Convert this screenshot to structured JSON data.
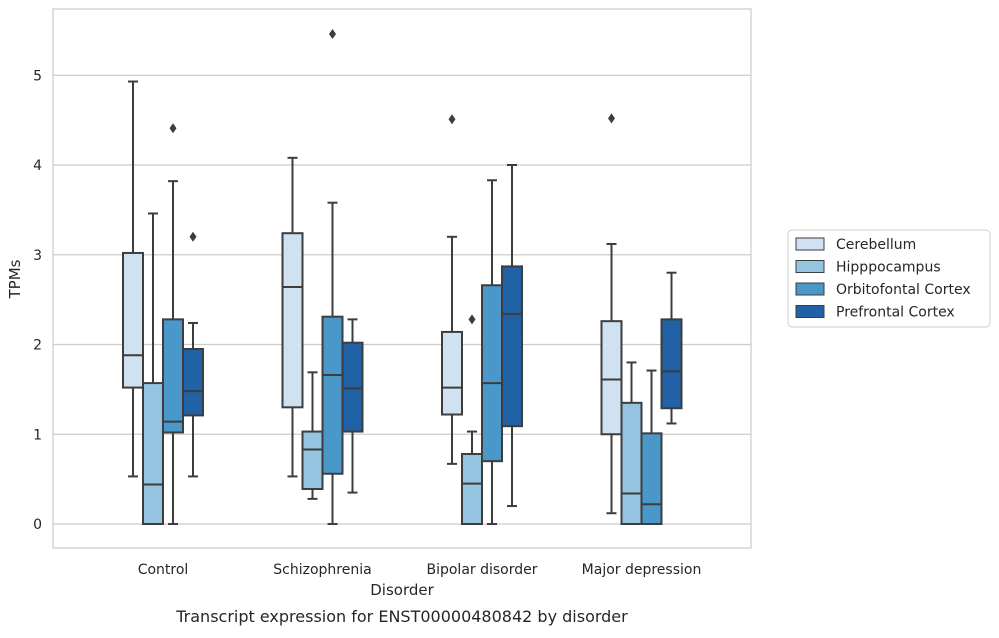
{
  "chart_data": {
    "type": "boxplot",
    "title": "Transcript expression for ENST00000480842 by disorder",
    "xlabel": "Disorder",
    "ylabel": "TPMs",
    "ylim": [
      -0.27,
      5.73
    ],
    "yticks": [
      0,
      1,
      2,
      3,
      4,
      5
    ],
    "categories": [
      "Control",
      "Schizophrenia",
      "Bipolar disorder",
      "Major depression"
    ],
    "grid": "horizontal",
    "legend_position": "right",
    "series": [
      {
        "name": "Cerebellum",
        "color": "#d0e1f2",
        "boxes": [
          {
            "whislo": 0.53,
            "q1": 1.52,
            "med": 1.88,
            "q3": 3.02,
            "whishi": 4.93,
            "fliers": []
          },
          {
            "whislo": 0.53,
            "q1": 1.3,
            "med": 2.64,
            "q3": 3.24,
            "whishi": 4.08,
            "fliers": []
          },
          {
            "whislo": 0.67,
            "q1": 1.22,
            "med": 1.52,
            "q3": 2.14,
            "whishi": 3.2,
            "fliers": [
              4.51
            ]
          },
          {
            "whislo": 0.12,
            "q1": 1.0,
            "med": 1.61,
            "q3": 2.26,
            "whishi": 3.12,
            "fliers": [
              4.52
            ]
          }
        ]
      },
      {
        "name": "Hipppocampus",
        "color": "#94c4df",
        "boxes": [
          {
            "whislo": 0.0,
            "q1": 0.0,
            "med": 0.44,
            "q3": 1.57,
            "whishi": 3.46,
            "fliers": []
          },
          {
            "whislo": 0.28,
            "q1": 0.39,
            "med": 0.83,
            "q3": 1.03,
            "whishi": 1.69,
            "fliers": []
          },
          {
            "whislo": 0.0,
            "q1": 0.0,
            "med": 0.45,
            "q3": 0.78,
            "whishi": 1.03,
            "fliers": [
              2.28
            ]
          },
          {
            "whislo": 0.0,
            "q1": 0.0,
            "med": 0.34,
            "q3": 1.35,
            "whishi": 1.8,
            "fliers": []
          }
        ]
      },
      {
        "name": "Orbitofontal Cortex",
        "color": "#4a98c9",
        "boxes": [
          {
            "whislo": 0.0,
            "q1": 1.02,
            "med": 1.14,
            "q3": 2.28,
            "whishi": 3.82,
            "fliers": [
              4.41
            ]
          },
          {
            "whislo": 0.0,
            "q1": 0.56,
            "med": 1.66,
            "q3": 2.31,
            "whishi": 3.58,
            "fliers": [
              5.46
            ]
          },
          {
            "whislo": 0.0,
            "q1": 0.7,
            "med": 1.57,
            "q3": 2.66,
            "whishi": 3.83,
            "fliers": []
          },
          {
            "whislo": 0.0,
            "q1": 0.0,
            "med": 0.22,
            "q3": 1.01,
            "whishi": 1.71,
            "fliers": []
          }
        ]
      },
      {
        "name": "Prefrontal Cortex",
        "color": "#2161a5",
        "boxes": [
          {
            "whislo": 0.53,
            "q1": 1.21,
            "med": 1.48,
            "q3": 1.95,
            "whishi": 2.24,
            "fliers": [
              3.2
            ]
          },
          {
            "whislo": 0.35,
            "q1": 1.03,
            "med": 1.51,
            "q3": 2.02,
            "whishi": 2.28,
            "fliers": []
          },
          {
            "whislo": 0.2,
            "q1": 1.09,
            "med": 2.34,
            "q3": 2.87,
            "whishi": 4.0,
            "fliers": []
          },
          {
            "whislo": 1.12,
            "q1": 1.29,
            "med": 1.7,
            "q3": 2.28,
            "whishi": 2.8,
            "fliers": []
          }
        ]
      }
    ]
  }
}
